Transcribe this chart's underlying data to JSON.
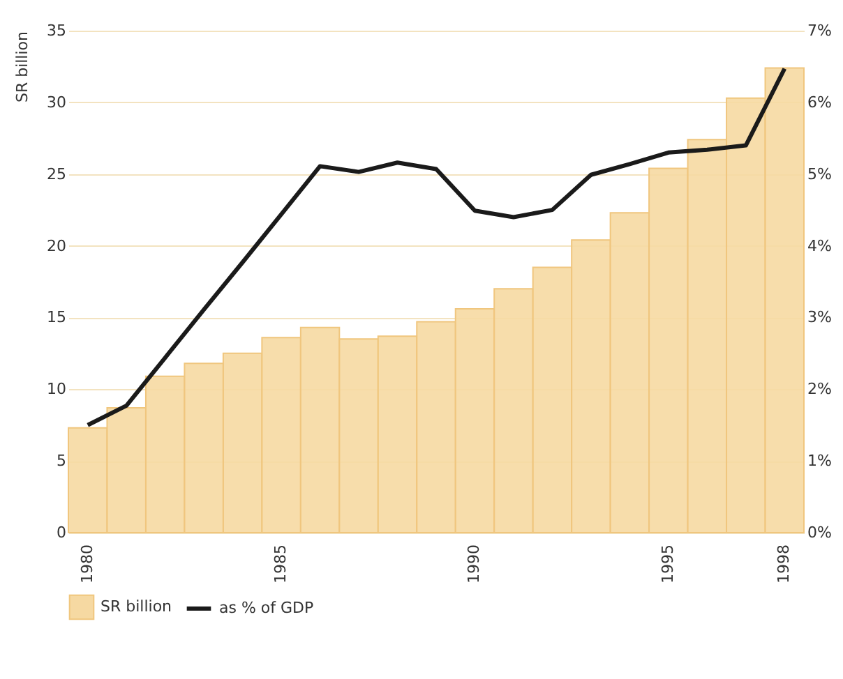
{
  "chart_data": {
    "type": "bar",
    "ylabel": "SR billion",
    "categories": [
      "1980",
      null,
      null,
      null,
      null,
      "1985",
      null,
      null,
      null,
      null,
      "1990",
      null,
      null,
      null,
      null,
      "1995",
      null,
      null,
      "1998"
    ],
    "series": [
      {
        "name": "SR billion",
        "color": "#f6d9a2",
        "values": [
          7.3,
          8.7,
          10.9,
          11.8,
          12.5,
          13.6,
          14.3,
          13.5,
          13.7,
          14.7,
          15.6,
          17.0,
          18.5,
          20.4,
          22.3,
          25.4,
          27.4,
          30.3,
          32.4
        ]
      },
      {
        "name": "as % of GDP",
        "type": "line",
        "axis": "y2",
        "color": "#1a1a1a",
        "values": [
          1.5,
          1.77,
          2.44,
          3.11,
          3.77,
          4.44,
          5.11,
          5.03,
          5.16,
          5.07,
          4.49,
          4.4,
          4.5,
          4.99,
          5.14,
          5.3,
          5.34,
          5.4,
          6.47
        ]
      }
    ],
    "ylim": [
      0,
      35
    ],
    "yticks": [
      0,
      5,
      10,
      15,
      20,
      25,
      30,
      35
    ],
    "y2lim": [
      0,
      7
    ],
    "y2ticks": [
      {
        "value": 0,
        "label": "0%"
      },
      {
        "value": 1,
        "label": "1%"
      },
      {
        "value": 2,
        "label": "2%"
      },
      {
        "value": 3,
        "label": "3%"
      },
      {
        "value": 4,
        "label": "4%"
      },
      {
        "value": 5,
        "label": "5%"
      },
      {
        "value": 6,
        "label": "6%"
      },
      {
        "value": 7,
        "label": "7%"
      }
    ],
    "grid": "y",
    "legend": "bottom"
  }
}
